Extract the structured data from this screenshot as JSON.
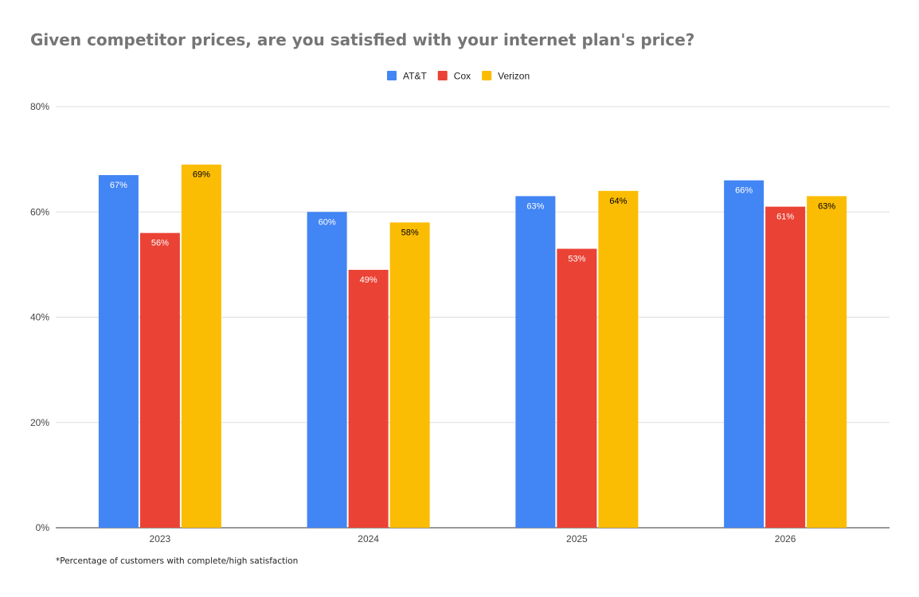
{
  "chart_data": {
    "type": "bar",
    "title": "Given competitor prices, are you satisfied with your internet plan's price?",
    "categories": [
      "2023",
      "2024",
      "2025",
      "2026"
    ],
    "series": [
      {
        "name": "AT&T",
        "color": "#4285f4",
        "label_color": "#ffffff",
        "values": [
          67,
          60,
          63,
          66
        ]
      },
      {
        "name": "Cox",
        "color": "#ea4335",
        "label_color": "#ffffff",
        "values": [
          56,
          49,
          53,
          61
        ]
      },
      {
        "name": "Verizon",
        "color": "#fbbc04",
        "label_color": "#000000",
        "values": [
          69,
          58,
          64,
          63
        ]
      }
    ],
    "ylim": [
      0,
      80
    ],
    "yticks": [
      "0%",
      "20%",
      "40%",
      "60%",
      "80%"
    ],
    "ytick_values": [
      0,
      20,
      40,
      60,
      80
    ],
    "value_suffix": "%",
    "grid": true,
    "legend": "top-center",
    "xlabel": "",
    "ylabel": "",
    "footnote": "*Percentage of customers with complete/high satisfaction"
  }
}
